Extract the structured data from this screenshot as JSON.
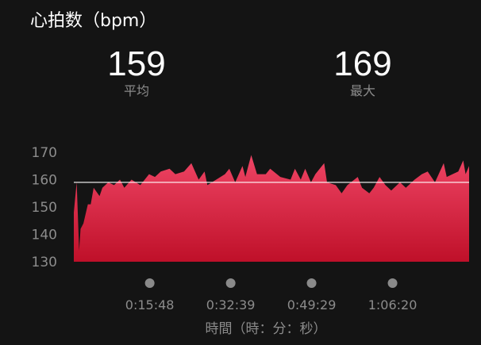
{
  "header": {
    "title": "心拍数（bpm）"
  },
  "stats": [
    {
      "value": "159",
      "label": "平均"
    },
    {
      "value": "169",
      "label": "最大"
    }
  ],
  "colors": {
    "fill_top": "#ef4565",
    "fill_bottom": "#bf1029",
    "average_line": "#ffffff",
    "background": "#141414",
    "axis_text": "#8c8c8c"
  },
  "chart_data": {
    "type": "area",
    "title": "心拍数（bpm）",
    "xlabel": "時間（時：分：秒）",
    "ylabel": "",
    "ylim": [
      130,
      170
    ],
    "yticks": [
      130,
      140,
      150,
      160,
      170
    ],
    "xticks": [
      "0:15:48",
      "0:32:39",
      "0:49:29",
      "1:06:20"
    ],
    "xlim": [
      "0:00:00",
      "1:22:16"
    ],
    "grid": false,
    "average": 159,
    "max": 169,
    "x": [
      "0:00:00",
      "0:00:36",
      "0:01:06",
      "0:01:24",
      "0:02:00",
      "0:02:55",
      "0:03:31",
      "0:04:08",
      "0:05:21",
      "0:05:57",
      "0:07:10",
      "0:08:23",
      "0:09:36",
      "0:10:30",
      "0:12:01",
      "0:13:51",
      "0:15:40",
      "0:16:53",
      "0:18:06",
      "0:19:55",
      "0:21:08",
      "0:22:57",
      "0:24:28",
      "0:25:59",
      "0:27:12",
      "0:27:48",
      "0:29:38",
      "0:31:27",
      "0:32:22",
      "0:33:35",
      "0:35:06",
      "0:35:42",
      "0:36:55",
      "0:38:08",
      "0:39:57",
      "0:40:52",
      "0:42:59",
      "0:45:07",
      "0:46:01",
      "0:47:14",
      "0:48:09",
      "0:49:22",
      "0:50:16",
      "0:52:06",
      "0:52:42",
      "0:54:31",
      "0:55:44",
      "0:56:57",
      "0:59:05",
      "0:59:59",
      "1:01:30",
      "1:02:25",
      "1:03:38",
      "1:04:51",
      "1:06:04",
      "1:07:53",
      "1:09:06",
      "1:10:55",
      "1:12:26",
      "1:13:39",
      "1:15:10",
      "1:16:59",
      "1:17:36",
      "1:18:49",
      "1:20:01",
      "1:21:03",
      "1:21:32",
      "1:22:16"
    ],
    "values": [
      148,
      159,
      134,
      142,
      144,
      151,
      151,
      157,
      154,
      157,
      159,
      158,
      160,
      157,
      160,
      158,
      162,
      161,
      163,
      164,
      162,
      163,
      166,
      160,
      163,
      158,
      160,
      162,
      164,
      159,
      165,
      161,
      169,
      162,
      162,
      164,
      161,
      160,
      164,
      160,
      164,
      159,
      162,
      166,
      159,
      158,
      155,
      158,
      161,
      157,
      155,
      157,
      161,
      158,
      156,
      159,
      157,
      160,
      162,
      163,
      159,
      166,
      161,
      162,
      163,
      167,
      162,
      165
    ]
  }
}
